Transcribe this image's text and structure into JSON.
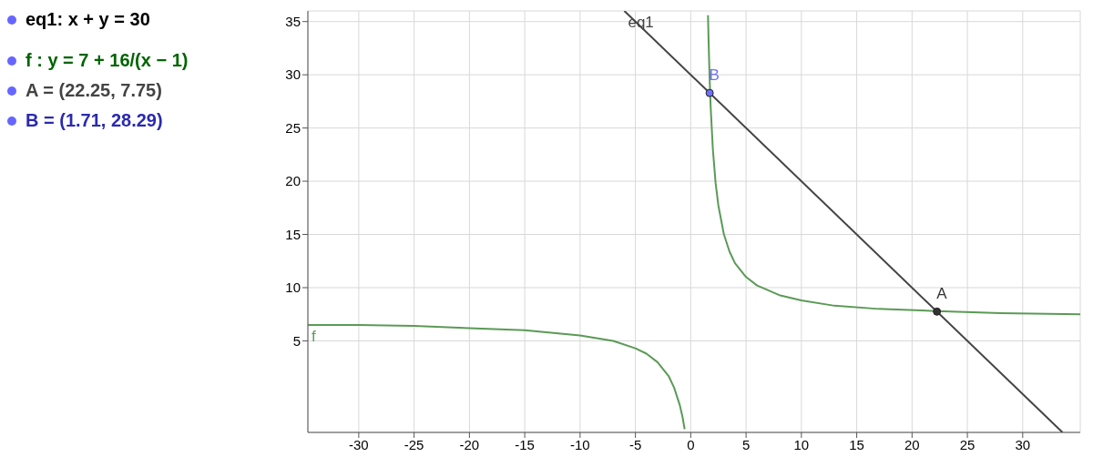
{
  "chart_data": {
    "type": "line",
    "annotations": [
      "eq1: x + y = 30",
      "f : y = 7 + 16/(x − 1)",
      "A = (22.25, 7.75)",
      "B = (1.71, 28.29)"
    ],
    "series": [
      {
        "name": "eq1",
        "color": "#444444",
        "x": [
          -6,
          33.6
        ],
        "values": [
          36,
          -3.6
        ]
      },
      {
        "name": "f",
        "color": "#5b9a56",
        "x": [
          -34.6,
          -30,
          -25,
          -20,
          -15,
          -10,
          -7,
          -5,
          -4,
          -3,
          -2,
          -1.5,
          -1,
          -0.75,
          -0.55,
          1,
          1.56,
          1.6,
          1.7,
          1.8,
          2,
          2.25,
          2.5,
          3,
          3.5,
          4,
          5,
          6,
          8,
          10,
          13,
          17,
          22.25,
          28,
          35.2
        ],
        "values": [
          6.5,
          6.5,
          6.4,
          6.2,
          6,
          5.5,
          5,
          4.3,
          3.8,
          3,
          1.7,
          0.6,
          -1,
          -2.1,
          -3.3,
          null,
          35.6,
          33.7,
          29.9,
          27,
          23,
          19.8,
          17.7,
          15,
          13.4,
          12.3,
          11,
          10.2,
          9.3,
          8.8,
          8.3,
          8,
          7.8,
          7.6,
          7.5
        ]
      },
      {
        "name": "A",
        "type": "scatter",
        "color": "#333333",
        "x": [
          22.25
        ],
        "values": [
          7.75
        ]
      },
      {
        "name": "B",
        "type": "scatter",
        "color": "#7070ff",
        "x": [
          1.71
        ],
        "values": [
          28.29
        ]
      }
    ],
    "xlim": [
      -34.6,
      35.2
    ],
    "xticks": [
      -30,
      -25,
      -20,
      -15,
      -10,
      -5,
      0,
      5,
      10,
      15,
      20,
      25,
      30
    ],
    "ylim": [
      -3.6,
      36
    ],
    "yticks": [
      5,
      10,
      15,
      20,
      25,
      30,
      35
    ],
    "grid": true
  }
}
